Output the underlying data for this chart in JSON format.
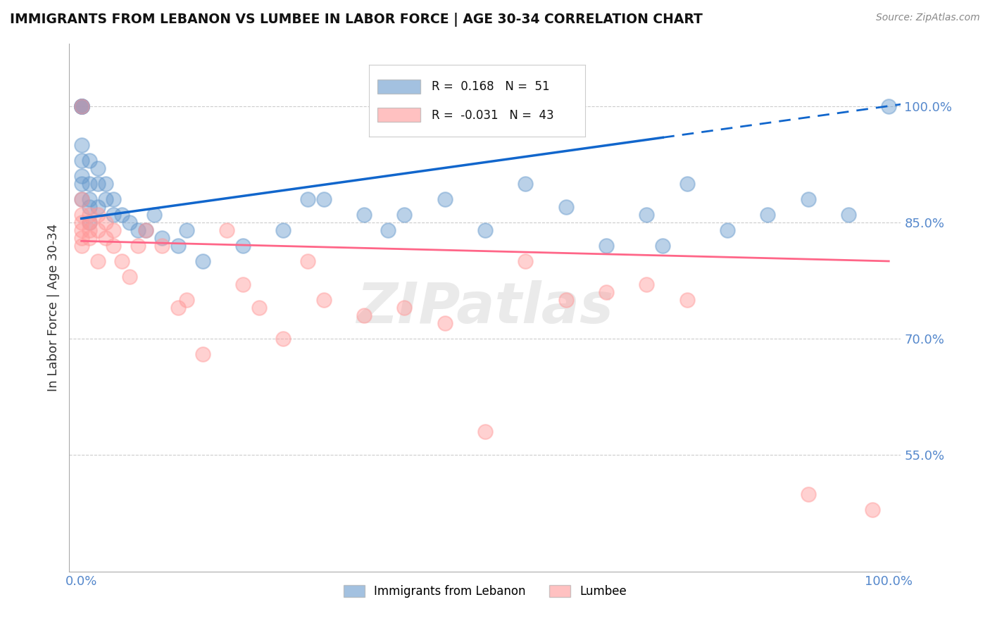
{
  "title": "IMMIGRANTS FROM LEBANON VS LUMBEE IN LABOR FORCE | AGE 30-34 CORRELATION CHART",
  "source": "Source: ZipAtlas.com",
  "ylabel": "In Labor Force | Age 30-34",
  "xlim": [
    -0.015,
    1.015
  ],
  "ylim": [
    0.4,
    1.08
  ],
  "yticks": [
    0.55,
    0.7,
    0.85,
    1.0
  ],
  "ytick_labels": [
    "55.0%",
    "70.0%",
    "85.0%",
    "100.0%"
  ],
  "xtick_labels": [
    "0.0%",
    "100.0%"
  ],
  "xticks": [
    0.0,
    1.0
  ],
  "legend_r_blue": "0.168",
  "legend_n_blue": "51",
  "legend_r_pink": "-0.031",
  "legend_n_pink": "43",
  "blue_color": "#6699CC",
  "pink_color": "#FF9999",
  "line_blue": "#1166CC",
  "line_pink": "#FF6688",
  "blue_x": [
    0.0,
    0.0,
    0.0,
    0.0,
    0.0,
    0.0,
    0.0,
    0.0,
    0.0,
    0.0,
    0.01,
    0.01,
    0.01,
    0.01,
    0.01,
    0.02,
    0.02,
    0.02,
    0.03,
    0.03,
    0.04,
    0.04,
    0.05,
    0.06,
    0.07,
    0.08,
    0.09,
    0.1,
    0.12,
    0.13,
    0.15,
    0.2,
    0.25,
    0.28,
    0.3,
    0.35,
    0.38,
    0.4,
    0.45,
    0.5,
    0.55,
    0.6,
    0.65,
    0.7,
    0.72,
    0.75,
    0.8,
    0.85,
    0.9,
    0.95,
    1.0
  ],
  "blue_y": [
    1.0,
    1.0,
    1.0,
    1.0,
    1.0,
    0.95,
    0.93,
    0.91,
    0.9,
    0.88,
    0.93,
    0.9,
    0.88,
    0.87,
    0.85,
    0.92,
    0.9,
    0.87,
    0.9,
    0.88,
    0.88,
    0.86,
    0.86,
    0.85,
    0.84,
    0.84,
    0.86,
    0.83,
    0.82,
    0.84,
    0.8,
    0.82,
    0.84,
    0.88,
    0.88,
    0.86,
    0.84,
    0.86,
    0.88,
    0.84,
    0.9,
    0.87,
    0.82,
    0.86,
    0.82,
    0.9,
    0.84,
    0.86,
    0.88,
    0.86,
    1.0
  ],
  "pink_x": [
    0.0,
    0.0,
    0.0,
    0.0,
    0.0,
    0.0,
    0.0,
    0.01,
    0.01,
    0.01,
    0.01,
    0.02,
    0.02,
    0.02,
    0.03,
    0.03,
    0.04,
    0.04,
    0.05,
    0.06,
    0.07,
    0.08,
    0.1,
    0.12,
    0.13,
    0.15,
    0.18,
    0.2,
    0.22,
    0.25,
    0.28,
    0.3,
    0.35,
    0.4,
    0.45,
    0.5,
    0.55,
    0.6,
    0.65,
    0.7,
    0.75,
    0.9,
    0.98
  ],
  "pink_y": [
    1.0,
    0.88,
    0.86,
    0.85,
    0.84,
    0.83,
    0.82,
    0.86,
    0.85,
    0.84,
    0.83,
    0.86,
    0.84,
    0.8,
    0.85,
    0.83,
    0.84,
    0.82,
    0.8,
    0.78,
    0.82,
    0.84,
    0.82,
    0.74,
    0.75,
    0.68,
    0.84,
    0.77,
    0.74,
    0.7,
    0.8,
    0.75,
    0.73,
    0.74,
    0.72,
    0.58,
    0.8,
    0.75,
    0.76,
    0.77,
    0.75,
    0.5,
    0.48
  ]
}
